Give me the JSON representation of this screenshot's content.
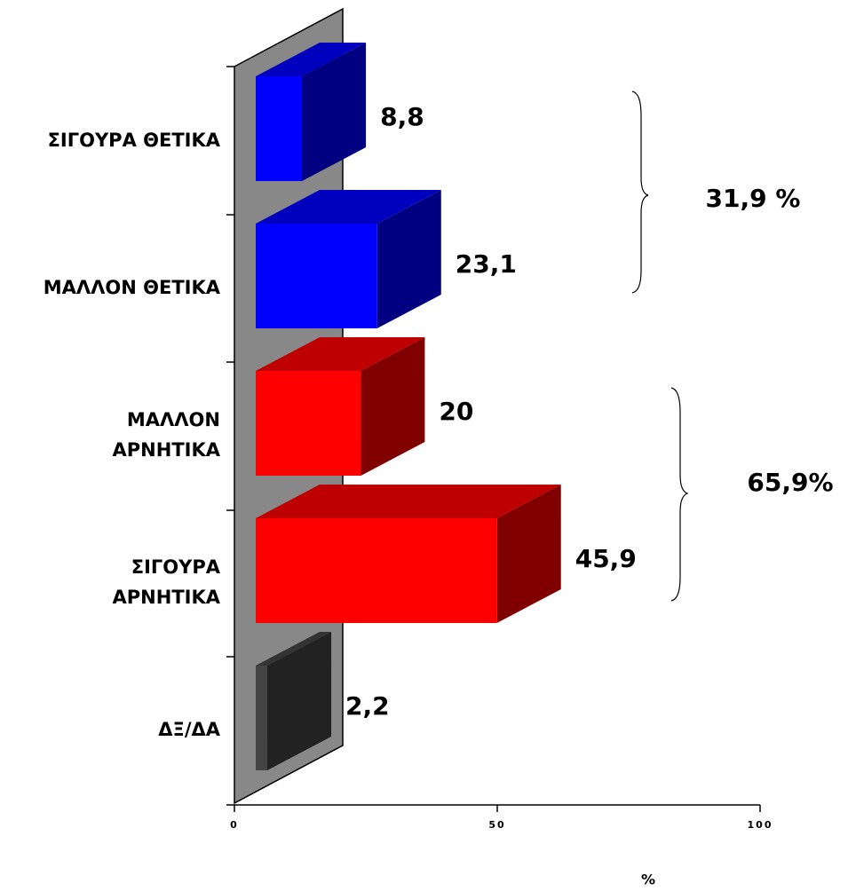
{
  "chart_data": {
    "type": "bar3d",
    "categories": [
      "ΣΙΓΟΥΡΑ ΘΕΤΙΚΑ",
      "ΜΑΛΛΟΝ ΘΕΤΙΚΑ",
      "ΜΑΛΛΟΝ\nΑΡΝΗΤΙΚΑ",
      "ΣΙΓΟΥΡΑ\nΑΡΝΗΤΙΚΑ",
      "ΔΞ/ΔΑ"
    ],
    "values": [
      8.8,
      23.1,
      20,
      45.9,
      2.2
    ],
    "value_labels": [
      "8,8",
      "23,1",
      "20",
      "45,9",
      "2,2"
    ],
    "colors": [
      "#0000ff",
      "#0000ff",
      "#ff0000",
      "#ff0000",
      "#444444"
    ],
    "xlim": [
      0,
      100
    ],
    "xticks": [
      0,
      50,
      100
    ],
    "xlabel": "%",
    "annotations": [
      "31,9 %",
      "65,9%"
    ]
  }
}
